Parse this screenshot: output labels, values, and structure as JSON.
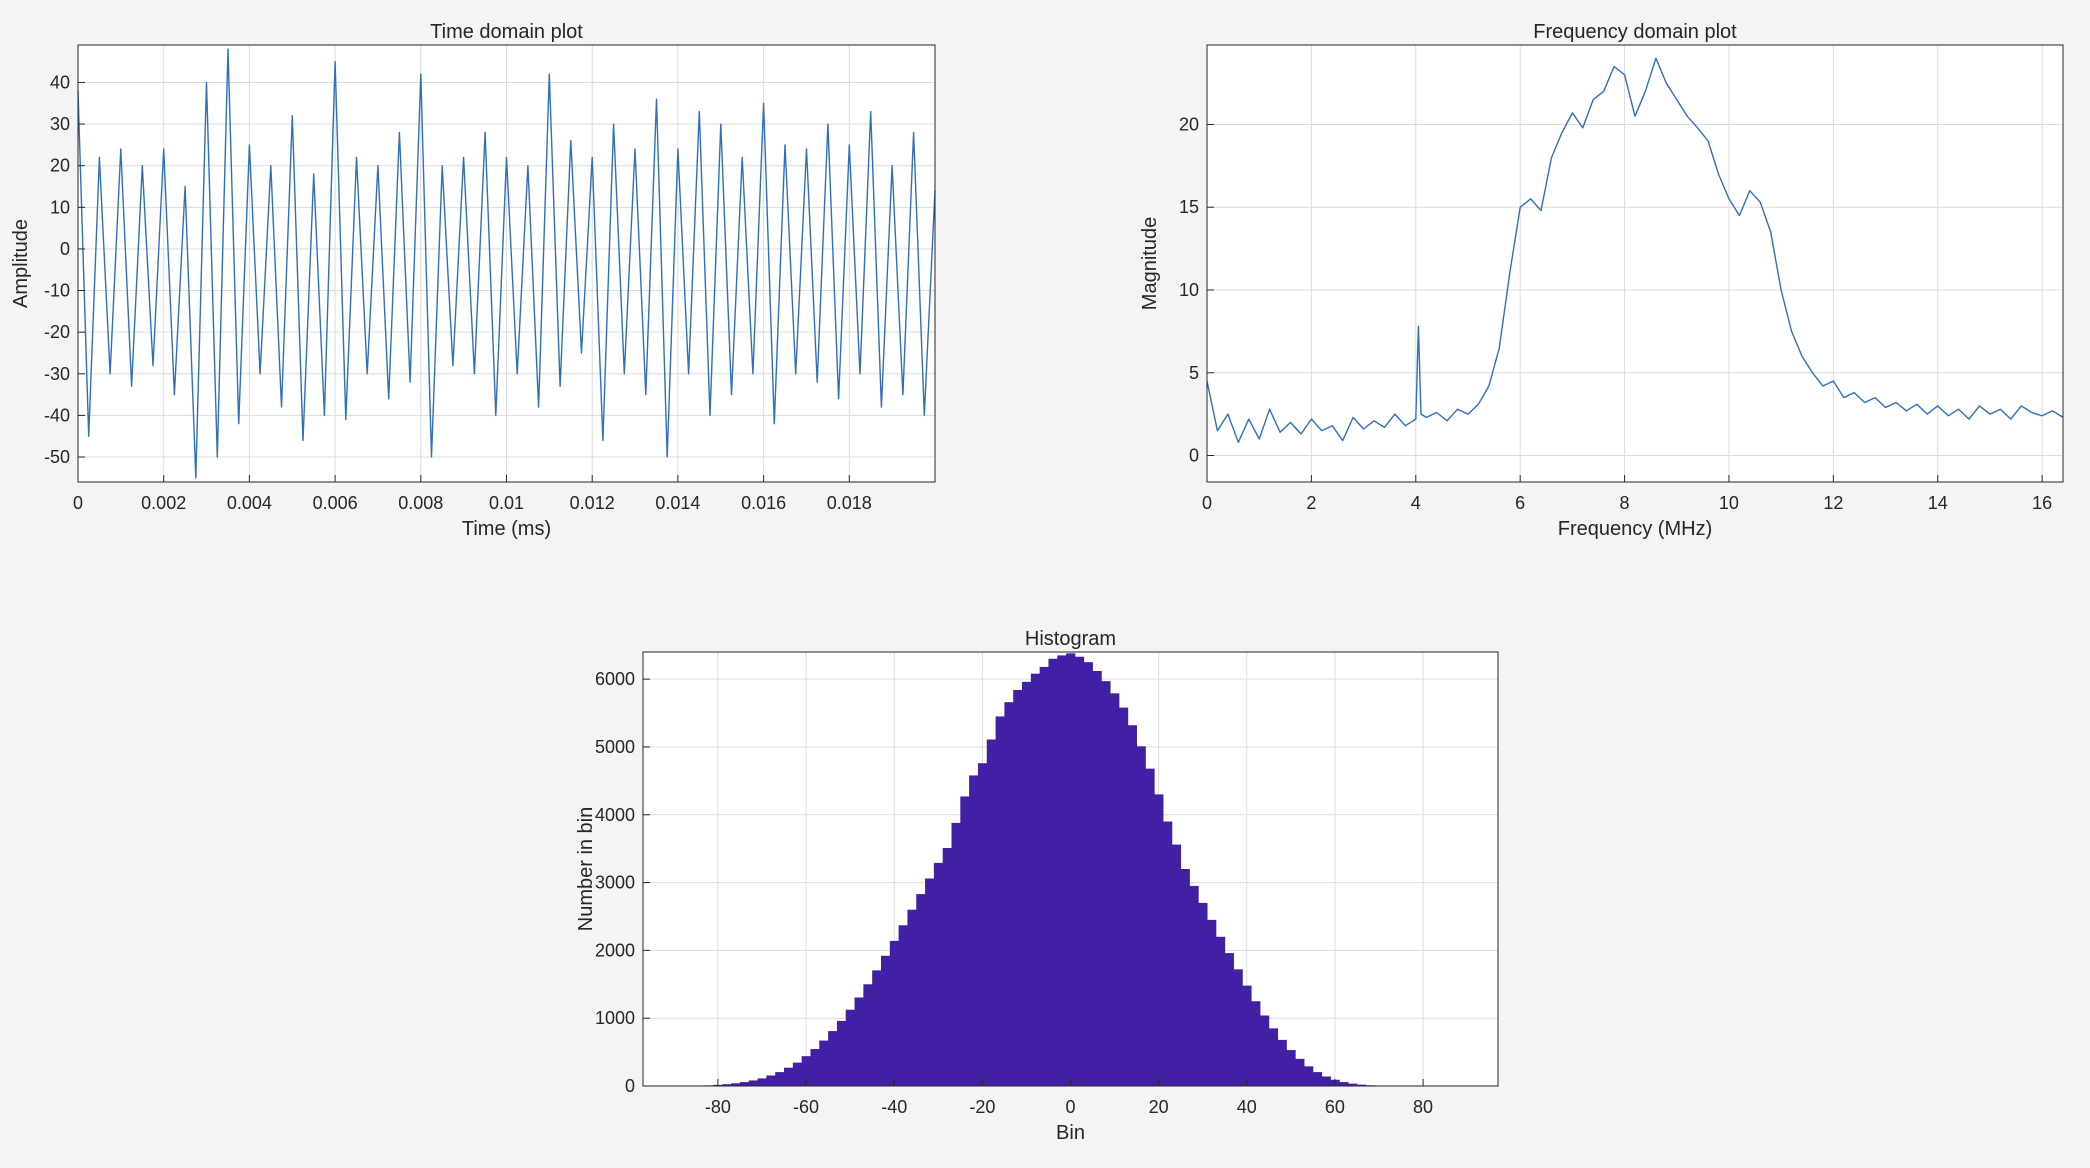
{
  "figure": {
    "background": "#f4f4f4",
    "axes_background": "#ffffff",
    "grid_color": "#dcdcdc",
    "axis_color": "#262626"
  },
  "chart_data": [
    {
      "type": "line",
      "title": "Time domain plot",
      "xlabel": "Time (ms)",
      "ylabel": "Amplitude",
      "xlim": [
        0,
        0.02
      ],
      "ylim": [
        -56,
        49
      ],
      "xticks": [
        0,
        0.002,
        0.004,
        0.006,
        0.008,
        0.01,
        0.012,
        0.014,
        0.016,
        0.018
      ],
      "xtick_labels": [
        "0",
        "0.002",
        "0.004",
        "0.006",
        "0.008",
        "0.01",
        "0.012",
        "0.014",
        "0.016",
        "0.018"
      ],
      "yticks": [
        -50,
        -40,
        -30,
        -20,
        -10,
        0,
        10,
        20,
        30,
        40
      ],
      "ytick_labels": [
        "-50",
        "-40",
        "-30",
        "-20",
        "-10",
        "0",
        "10",
        "20",
        "30",
        "40"
      ],
      "grid": true,
      "color": "#2f6fbf",
      "series": [
        {
          "x": [
            0,
            0.00025,
            0.0005,
            0.00075,
            0.001,
            0.00125,
            0.0015,
            0.00175,
            0.002,
            0.00225,
            0.0025,
            0.00275,
            0.003,
            0.00325,
            0.0035,
            0.00375,
            0.004,
            0.00425,
            0.0045,
            0.00475,
            0.005,
            0.00525,
            0.0055,
            0.00575,
            0.006,
            0.00625,
            0.0065,
            0.00675,
            0.007,
            0.00725,
            0.0075,
            0.00775,
            0.008,
            0.00825,
            0.0085,
            0.00875,
            0.009,
            0.00925,
            0.0095,
            0.00975,
            0.01,
            0.01025,
            0.0105,
            0.01075,
            0.011,
            0.01125,
            0.0115,
            0.01175,
            0.012,
            0.01225,
            0.0125,
            0.01275,
            0.013,
            0.01325,
            0.0135,
            0.01375,
            0.014,
            0.01425,
            0.0145,
            0.01475,
            0.015,
            0.01525,
            0.0155,
            0.01575,
            0.016,
            0.01625,
            0.0165,
            0.01675,
            0.017,
            0.01725,
            0.0175,
            0.01775,
            0.018,
            0.01825,
            0.0185,
            0.01875,
            0.019,
            0.01925,
            0.0195,
            0.01975,
            0.02
          ],
          "y": [
            38,
            -45,
            22,
            -30,
            24,
            -33,
            20,
            -28,
            24,
            -35,
            15,
            -55,
            40,
            -50,
            48,
            -42,
            25,
            -30,
            20,
            -38,
            32,
            -46,
            18,
            -40,
            45,
            -41,
            22,
            -30,
            20,
            -36,
            28,
            -32,
            42,
            -50,
            20,
            -28,
            22,
            -30,
            28,
            -40,
            22,
            -30,
            20,
            -38,
            42,
            -33,
            26,
            -25,
            22,
            -46,
            30,
            -30,
            24,
            -35,
            36,
            -50,
            24,
            -30,
            33,
            -40,
            30,
            -35,
            22,
            -30,
            35,
            -42,
            25,
            -30,
            24,
            -32,
            30,
            -36,
            25,
            -30,
            33,
            -38,
            20,
            -35,
            28,
            -40,
            14
          ]
        }
      ]
    },
    {
      "type": "line",
      "title": "Frequency domain plot",
      "xlabel": "Frequency (MHz)",
      "ylabel": "Magnitude",
      "xlim": [
        0,
        16.4
      ],
      "ylim": [
        -1.6,
        24.8
      ],
      "xticks": [
        0,
        2,
        4,
        6,
        8,
        10,
        12,
        14,
        16
      ],
      "xtick_labels": [
        "0",
        "2",
        "4",
        "6",
        "8",
        "10",
        "12",
        "14",
        "16"
      ],
      "yticks": [
        0,
        5,
        10,
        15,
        20
      ],
      "ytick_labels": [
        "0",
        "5",
        "10",
        "15",
        "20"
      ],
      "grid": true,
      "color": "#2f6fbf",
      "series": [
        {
          "x": [
            0,
            0.2,
            0.4,
            0.6,
            0.8,
            1,
            1.2,
            1.4,
            1.6,
            1.8,
            2,
            2.2,
            2.4,
            2.6,
            2.8,
            3,
            3.2,
            3.4,
            3.6,
            3.8,
            4,
            4.05,
            4.1,
            4.2,
            4.4,
            4.6,
            4.8,
            5,
            5.2,
            5.4,
            5.6,
            5.8,
            6,
            6.2,
            6.4,
            6.6,
            6.8,
            7,
            7.2,
            7.4,
            7.6,
            7.8,
            8,
            8.2,
            8.4,
            8.6,
            8.8,
            9,
            9.2,
            9.4,
            9.6,
            9.8,
            10,
            10.2,
            10.4,
            10.6,
            10.8,
            11,
            11.2,
            11.4,
            11.6,
            11.8,
            12,
            12.2,
            12.4,
            12.6,
            12.8,
            13,
            13.2,
            13.4,
            13.6,
            13.8,
            14,
            14.2,
            14.4,
            14.6,
            14.8,
            15,
            15.2,
            15.4,
            15.6,
            15.8,
            16,
            16.2,
            16.4
          ],
          "y": [
            4.5,
            1.5,
            2.5,
            0.8,
            2.2,
            1,
            2.8,
            1.4,
            2,
            1.3,
            2.2,
            1.5,
            1.8,
            0.9,
            2.3,
            1.6,
            2.1,
            1.7,
            2.5,
            1.8,
            2.2,
            7.8,
            2.5,
            2.3,
            2.6,
            2.1,
            2.8,
            2.5,
            3.1,
            4.2,
            6.5,
            11,
            15,
            15.5,
            14.8,
            18,
            19.5,
            20.7,
            19.8,
            21.5,
            22,
            23.5,
            23,
            20.5,
            22,
            24,
            22.5,
            21.5,
            20.5,
            19.8,
            19,
            17,
            15.5,
            14.5,
            16,
            15.3,
            13.5,
            10,
            7.5,
            6,
            5,
            4.2,
            4.5,
            3.5,
            3.8,
            3.2,
            3.5,
            2.9,
            3.2,
            2.7,
            3.1,
            2.5,
            3,
            2.4,
            2.8,
            2.2,
            3,
            2.5,
            2.8,
            2.2,
            3,
            2.6,
            2.4,
            2.7,
            2.3
          ]
        }
      ]
    },
    {
      "type": "bar",
      "title": "Histogram",
      "xlabel": "Bin",
      "ylabel": "Number in bin",
      "xlim": [
        -97,
        97
      ],
      "ylim": [
        0,
        6400
      ],
      "xticks": [
        -80,
        -60,
        -40,
        -20,
        0,
        20,
        40,
        60,
        80
      ],
      "xtick_labels": [
        "-80",
        "-60",
        "-40",
        "-20",
        "0",
        "20",
        "40",
        "60",
        "80"
      ],
      "yticks": [
        0,
        1000,
        2000,
        3000,
        4000,
        5000,
        6000
      ],
      "ytick_labels": [
        "0",
        "1000",
        "2000",
        "3000",
        "4000",
        "5000",
        "6000"
      ],
      "grid": true,
      "color": "#4220a6",
      "bin_width": 2,
      "categories": [
        -84,
        -82,
        -80,
        -78,
        -76,
        -74,
        -72,
        -70,
        -68,
        -66,
        -64,
        -62,
        -60,
        -58,
        -56,
        -54,
        -52,
        -50,
        -48,
        -46,
        -44,
        -42,
        -40,
        -38,
        -36,
        -34,
        -32,
        -30,
        -28,
        -26,
        -24,
        -22,
        -20,
        -18,
        -16,
        -14,
        -12,
        -10,
        -8,
        -6,
        -4,
        -2,
        0,
        2,
        4,
        6,
        8,
        10,
        12,
        14,
        16,
        18,
        20,
        22,
        24,
        26,
        28,
        30,
        32,
        34,
        36,
        38,
        40,
        42,
        44,
        46,
        48,
        50,
        52,
        54,
        56,
        58,
        60,
        62,
        64,
        66,
        68,
        70,
        72,
        74,
        76,
        78,
        80,
        82,
        84
      ],
      "values": [
        6,
        10,
        17,
        27,
        40,
        58,
        82,
        112,
        155,
        205,
        270,
        345,
        440,
        545,
        670,
        810,
        960,
        1125,
        1305,
        1500,
        1705,
        1920,
        2140,
        2370,
        2600,
        2830,
        3060,
        3290,
        3510,
        3880,
        4270,
        4580,
        4760,
        5110,
        5450,
        5660,
        5840,
        5960,
        6080,
        6180,
        6300,
        6350,
        6380,
        6330,
        6250,
        6120,
        5970,
        5790,
        5580,
        5320,
        5010,
        4680,
        4300,
        3900,
        3560,
        3200,
        2950,
        2700,
        2450,
        2200,
        1960,
        1720,
        1480,
        1250,
        1040,
        850,
        680,
        530,
        400,
        290,
        205,
        140,
        92,
        58,
        35,
        20,
        11,
        6,
        3,
        2,
        1,
        1,
        0,
        0,
        0
      ]
    }
  ]
}
